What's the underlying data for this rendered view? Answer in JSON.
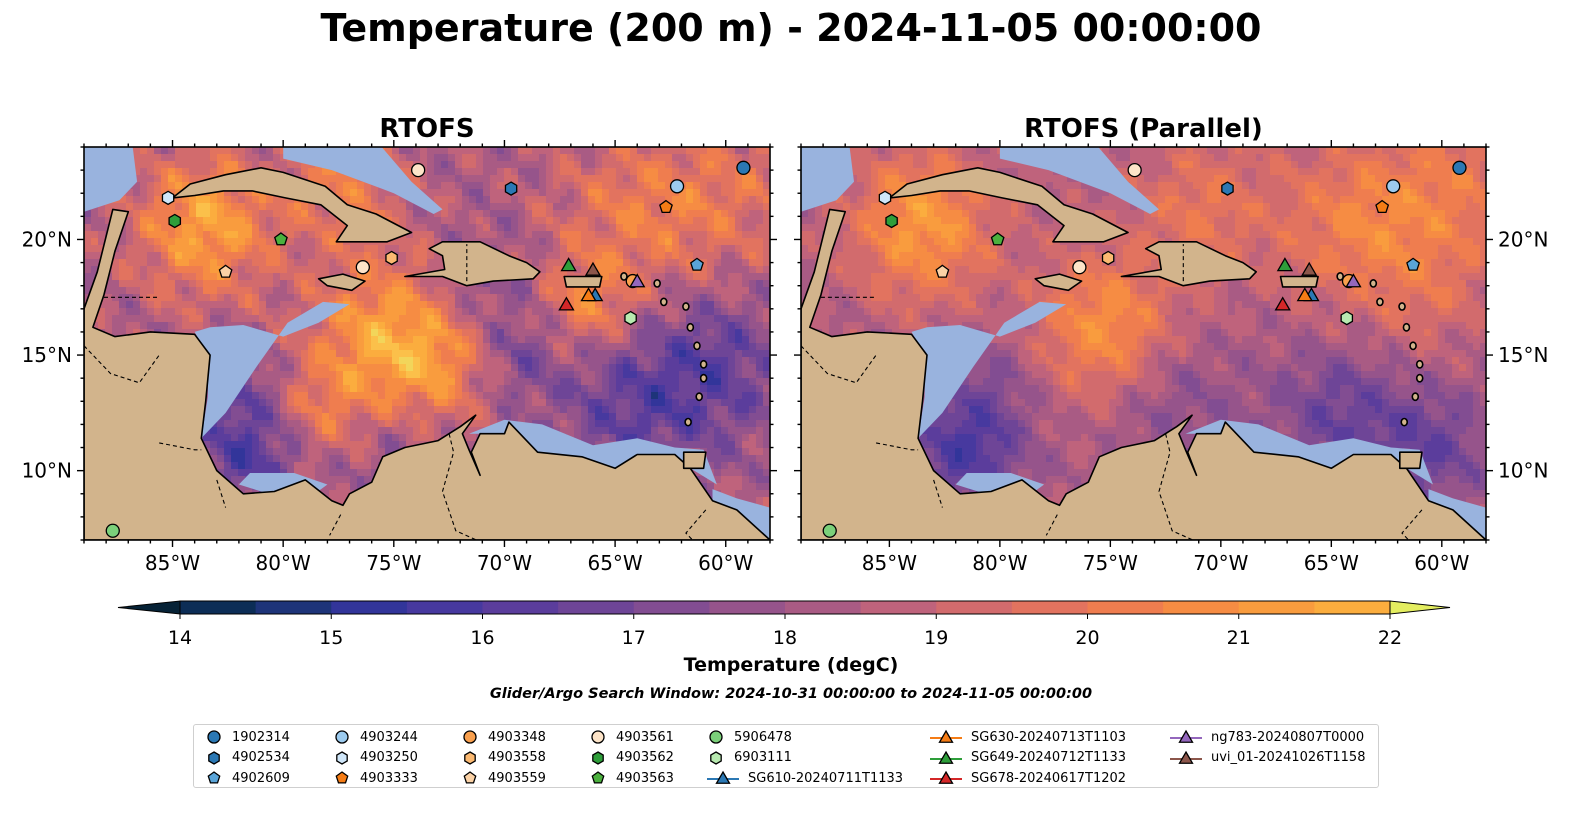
{
  "figure": {
    "title": "Temperature (200 m) - 2024-11-05 00:00:00",
    "search_window": "Glider/Argo Search Window: 2024-10-31 00:00:00 to 2024-11-05 00:00:00"
  },
  "panels": [
    {
      "title": "RTOFS"
    },
    {
      "title": "RTOFS (Parallel)"
    }
  ],
  "map": {
    "lon_range": [
      -89,
      -58
    ],
    "lat_range": [
      7,
      24
    ],
    "lon_ticks": [
      -85,
      -80,
      -75,
      -70,
      -65,
      -60
    ],
    "lon_tick_labels": [
      "85°W",
      "80°W",
      "75°W",
      "70°W",
      "65°W",
      "60°W"
    ],
    "lat_ticks": [
      10,
      15,
      20
    ],
    "lat_tick_labels": [
      "10°N",
      "15°N",
      "20°N"
    ],
    "colors": {
      "land": "#d2b48c",
      "shallow_water": "#99b3de",
      "deep": "#0a2030"
    }
  },
  "colorbar": {
    "label": "Temperature (degC)",
    "min": 14,
    "max": 22,
    "step": 0.5,
    "ticks": [
      14,
      15,
      16,
      17,
      18,
      19,
      20,
      21,
      22
    ],
    "tick_labels": [
      "14",
      "15",
      "16",
      "17",
      "18",
      "19",
      "20",
      "21",
      "22"
    ],
    "colormap": [
      "#062236",
      "#0c2d56",
      "#1e3479",
      "#32359a",
      "#47399f",
      "#5b3d9c",
      "#6e4597",
      "#824d92",
      "#96548b",
      "#a95b84",
      "#bf637c",
      "#d26b6d",
      "#e2735f",
      "#ef7d4f",
      "#f68c43",
      "#f99c3e",
      "#fbad3e",
      "#fbc04a",
      "#f2d55a",
      "#e4ee60"
    ]
  },
  "legend": {
    "entries": [
      {
        "label": "1902314",
        "marker": "circle",
        "color": "#2b78b4"
      },
      {
        "label": "4902534",
        "marker": "hexagon",
        "color": "#2b78b4"
      },
      {
        "label": "4902609",
        "marker": "pentagon",
        "color": "#5aa5d9"
      },
      {
        "label": "4903244",
        "marker": "circle",
        "color": "#9ccbef"
      },
      {
        "label": "4903250",
        "marker": "hexagon",
        "color": "#cfe6f9"
      },
      {
        "label": "4903333",
        "marker": "pentagon",
        "color": "#f57c15"
      },
      {
        "label": "4903348",
        "marker": "circle",
        "color": "#f9a04e"
      },
      {
        "label": "4903558",
        "marker": "hexagon",
        "color": "#fbb971"
      },
      {
        "label": "4903559",
        "marker": "pentagon",
        "color": "#fbd2a6"
      },
      {
        "label": "4903561",
        "marker": "circle",
        "color": "#fde4c8"
      },
      {
        "label": "4903562",
        "marker": "hexagon",
        "color": "#2e9e3a"
      },
      {
        "label": "4903563",
        "marker": "pentagon",
        "color": "#4bb03e"
      },
      {
        "label": "5906478",
        "marker": "circle",
        "color": "#7bd07a"
      },
      {
        "label": "6903111",
        "marker": "hexagon",
        "color": "#b8eab0"
      },
      {
        "label": "SG610-20240711T1133",
        "marker": "triangle",
        "color": "#2b78b4"
      },
      {
        "label": "SG630-20240713T1103",
        "marker": "triangle",
        "color": "#f57c15"
      },
      {
        "label": "SG649-20240712T1133",
        "marker": "triangle",
        "color": "#2e9e3a"
      },
      {
        "label": "SG678-20240617T1202",
        "marker": "triangle",
        "color": "#d42728"
      },
      {
        "label": "ng783-20240807T0000",
        "marker": "triangle",
        "color": "#9467bd"
      },
      {
        "label": "uvi_01-20241026T1158",
        "marker": "triangle",
        "color": "#8c564b"
      }
    ]
  },
  "observations": [
    {
      "id": "1902314",
      "lon": -59.2,
      "lat": 23.1
    },
    {
      "id": "4902534",
      "lon": -69.7,
      "lat": 22.2
    },
    {
      "id": "4902609",
      "lon": -61.3,
      "lat": 18.9
    },
    {
      "id": "4903244",
      "lon": -62.2,
      "lat": 22.3
    },
    {
      "id": "4903250",
      "lon": -85.2,
      "lat": 21.8
    },
    {
      "id": "4903333",
      "lon": -62.7,
      "lat": 21.4
    },
    {
      "id": "4903348",
      "lon": -64.2,
      "lat": 18.2
    },
    {
      "id": "4903558",
      "lon": -75.1,
      "lat": 19.2
    },
    {
      "id": "4903559",
      "lon": -82.6,
      "lat": 18.6
    },
    {
      "id": "4903561",
      "lon": -76.4,
      "lat": 18.8
    },
    {
      "id": "4903561",
      "lon": -73.9,
      "lat": 23.0
    },
    {
      "id": "4903562",
      "lon": -84.9,
      "lat": 20.8
    },
    {
      "id": "4903563",
      "lon": -80.1,
      "lat": 20.0
    },
    {
      "id": "5906478",
      "lon": -87.7,
      "lat": 7.4
    },
    {
      "id": "6903111",
      "lon": -64.3,
      "lat": 16.6
    },
    {
      "id": "SG610-20240711T1133",
      "lon": -65.9,
      "lat": 17.6
    },
    {
      "id": "SG630-20240713T1103",
      "lon": -66.2,
      "lat": 17.6
    },
    {
      "id": "SG649-20240712T1133",
      "lon": -67.1,
      "lat": 18.9
    },
    {
      "id": "SG678-20240617T1202",
      "lon": -67.2,
      "lat": 17.2
    },
    {
      "id": "ng783-20240807T0000",
      "lon": -64.0,
      "lat": 18.2
    },
    {
      "id": "uvi_01-20241026T1158",
      "lon": -66.0,
      "lat": 18.7
    }
  ]
}
